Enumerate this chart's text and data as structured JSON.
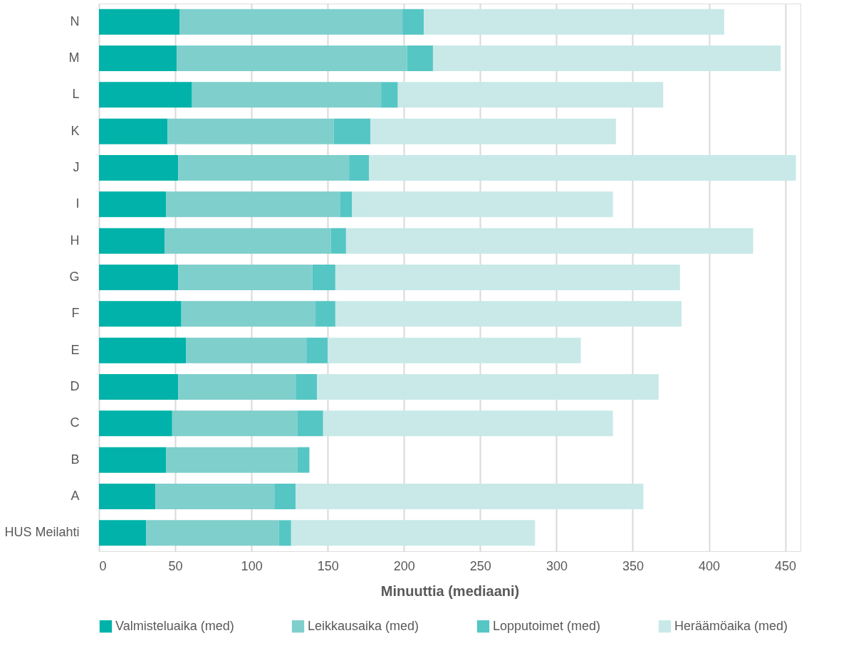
{
  "chart_data": {
    "type": "bar",
    "orientation": "horizontal",
    "stacked": true,
    "xlabel": "Minuuttia (mediaani)",
    "categories": [
      "N",
      "M",
      "L",
      "K",
      "J",
      "I",
      "H",
      "G",
      "F",
      "E",
      "D",
      "C",
      "B",
      "A",
      "HUS Meilahti"
    ],
    "series": [
      {
        "name": "Valmisteluaika (med)",
        "color": "#00b2a9",
        "values": [
          53,
          51,
          61,
          45,
          52,
          44,
          43,
          52,
          54,
          57,
          52,
          48,
          44,
          37,
          31
        ]
      },
      {
        "name": "Leikkausaika (med)",
        "color": "#7fcfcc",
        "values": [
          146,
          151,
          124,
          109,
          112,
          114,
          109,
          88,
          88,
          79,
          77,
          82,
          86,
          78,
          87
        ]
      },
      {
        "name": "Lopputoimet (med)",
        "color": "#55c6c3",
        "values": [
          14,
          17,
          11,
          24,
          13,
          8,
          10,
          15,
          13,
          14,
          14,
          17,
          8,
          14,
          8
        ]
      },
      {
        "name": "Heräämöaika (med)",
        "color": "#c8e9e8",
        "values": [
          197,
          228,
          174,
          161,
          280,
          171,
          267,
          226,
          227,
          166,
          224,
          190,
          null,
          228,
          160
        ]
      }
    ],
    "xlim": [
      0,
      460
    ],
    "xticks": [
      0,
      50,
      100,
      150,
      200,
      250,
      300,
      350,
      400,
      450
    ],
    "grid": "x",
    "legend": "bottom"
  }
}
